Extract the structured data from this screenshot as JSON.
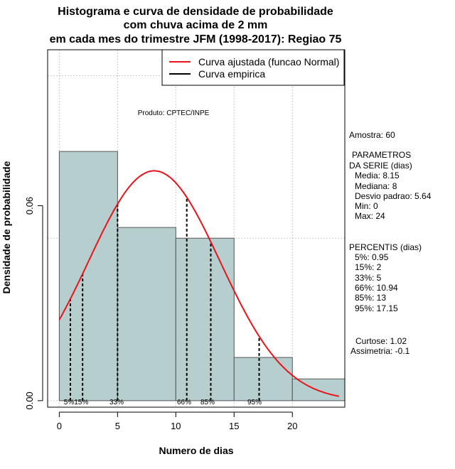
{
  "chart_data": {
    "type": "histogram",
    "title_lines": [
      "Histograma e curva de densidade de probabilidade",
      "com chuva acima de 2 mm",
      "em cada mes do trimestre JFM (1998-2017): Regiao 75"
    ],
    "xlabel": "Numero de dias",
    "ylabel": "Densidade de probabilidade",
    "xlim": [
      -1,
      24.5
    ],
    "ylim": [
      -0.002,
      0.108
    ],
    "x_ticks": [
      0,
      5,
      10,
      15,
      20
    ],
    "y_ticks": [
      0.0,
      0.06
    ],
    "y_tick_labels": [
      "0.00",
      "0.06"
    ],
    "grid_x": [
      0,
      5,
      10,
      15,
      20
    ],
    "grid_y": [
      0.0,
      0.05,
      0.1
    ],
    "bins": [
      {
        "from": 0,
        "to": 5,
        "density": 0.0767
      },
      {
        "from": 5,
        "to": 10,
        "density": 0.0533
      },
      {
        "from": 10,
        "to": 15,
        "density": 0.05
      },
      {
        "from": 15,
        "to": 20,
        "density": 0.0133
      },
      {
        "from": 20,
        "to": 25,
        "density": 0.0067
      }
    ],
    "normal_fit": {
      "mean": 8.15,
      "sd": 5.64,
      "from": 0,
      "to": 24
    },
    "percentile_lines": [
      {
        "label": "5%",
        "x": 0.95
      },
      {
        "label": "15%",
        "x": 2
      },
      {
        "label": "33%",
        "x": 5
      },
      {
        "label": "66%",
        "x": 10.94
      },
      {
        "label": "85%",
        "x": 13
      },
      {
        "label": "95%",
        "x": 17.15
      }
    ],
    "percentile_label_group": "5%15%",
    "legend": [
      {
        "label": "Curva ajustada (funcao Normal)",
        "color": "#e8141a"
      },
      {
        "label": "Curva empirica",
        "color": "#000000"
      }
    ],
    "annotation": "Produto: CPTEC/INPE",
    "colors": {
      "bar_fill": "#b6cece",
      "bar_stroke": "#555555",
      "fit_curve": "#e8141a",
      "grid": "#c8c8c8"
    }
  },
  "side_panel": {
    "amostra": "Amostra: 60",
    "param_title_1": "PARAMETROS",
    "param_title_2": "DA SERIE (dias)",
    "media": "Media: 8.15",
    "mediana": "Mediana: 8",
    "desvio": "Desvio padrao: 5.64",
    "min": "Min: 0",
    "max": "Max: 24",
    "perc_title": "PERCENTIS (dias)",
    "p5": "5%: 0.95",
    "p15": "15%: 2",
    "p33": "33%: 5",
    "p66": "66%: 10.94",
    "p85": "85%: 13",
    "p95": "95%: 17.15",
    "curtose": "Curtose: 1.02",
    "assimetria": "Assimetria: -0.1"
  }
}
